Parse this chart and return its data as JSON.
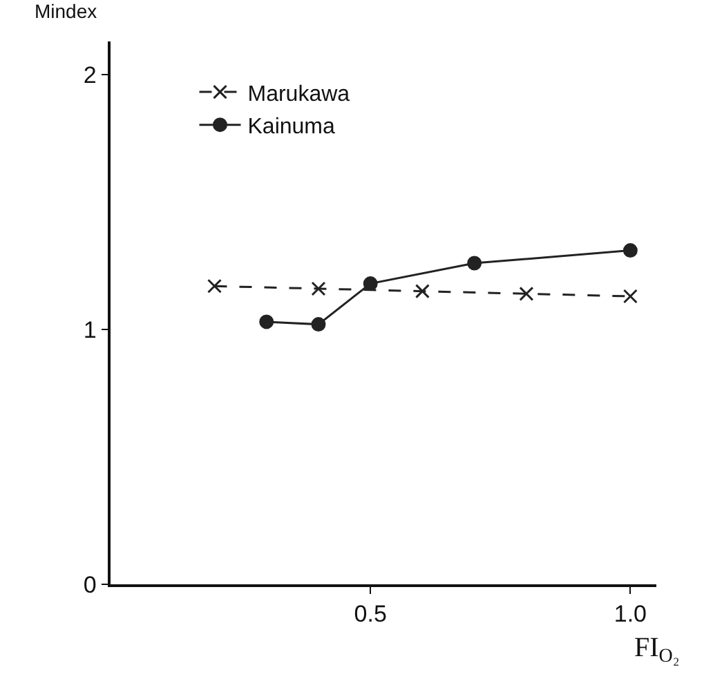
{
  "chart_data": {
    "type": "line",
    "xlabel": "FI$_{O₂}$",
    "ylabel": "Mindex",
    "xlim": [
      0,
      1.05
    ],
    "ylim": [
      0,
      2.13
    ],
    "xticks": [
      0.5,
      {
        "value": 1.0,
        "label": "1.0"
      }
    ],
    "yticks": [
      0,
      1,
      2
    ],
    "legend": "top left",
    "series": [
      {
        "name": "Marukawa",
        "color": "#222222",
        "marker": "cross",
        "line_style": "dashed",
        "x": [
          0.2,
          0.4,
          0.6,
          0.8,
          1.0
        ],
        "values": [
          1.17,
          1.16,
          1.15,
          1.14,
          1.13
        ]
      },
      {
        "name": "Kainuma",
        "color": "#222222",
        "marker": "circle",
        "line_style": "solid",
        "x": [
          0.3,
          0.4,
          0.5,
          0.7,
          1.0
        ],
        "values": [
          1.03,
          1.02,
          1.18,
          1.26,
          1.31
        ]
      }
    ]
  }
}
